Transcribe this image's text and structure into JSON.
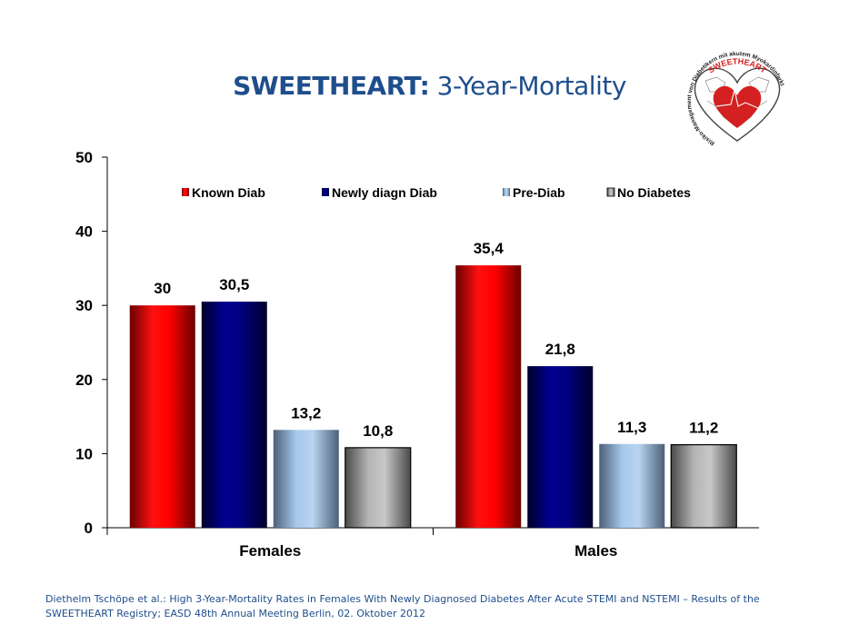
{
  "title": {
    "bold": "SWEETHEART:",
    "rest": " 3-Year-Mortality"
  },
  "logo": {
    "icon": "sweetheart-heart-logo-icon",
    "ring_top": "SWEETHEART",
    "ring_text": "Risiko-Management von Diabetikern mit akutem Myokardinfarkt"
  },
  "colors": {
    "title": "#1f4e8c",
    "footer": "#1f4e8c",
    "known_diab": "#ff0000",
    "newly_diagn_diab": "#000080",
    "pre_diab": "#a6c8ec",
    "no_diabetes": "#b4b4b4"
  },
  "chart_data": {
    "type": "bar",
    "title": "SWEETHEART: 3-Year-Mortality",
    "xlabel": "",
    "ylabel": "",
    "categories": [
      "Females",
      "Males"
    ],
    "series": [
      {
        "name": "Known Diab",
        "values": [
          30,
          35.4
        ],
        "labels": [
          "30",
          "35,4"
        ]
      },
      {
        "name": "Newly diagn Diab",
        "values": [
          30.5,
          21.8
        ],
        "labels": [
          "30,5",
          "21,8"
        ]
      },
      {
        "name": "Pre-Diab",
        "values": [
          13.2,
          11.3
        ],
        "labels": [
          "13,2",
          "11,3"
        ]
      },
      {
        "name": "No Diabetes",
        "values": [
          10.8,
          11.2
        ],
        "labels": [
          "10,8",
          "11,2"
        ]
      }
    ],
    "ylim": [
      0,
      50
    ],
    "yticks": [
      0,
      10,
      20,
      30,
      40,
      50
    ],
    "grid": false,
    "legend_position": "top-center"
  },
  "footer": {
    "line1": "Diethelm Tschöpe et al.: High 3-Year-Mortality Rates in Females With Newly Diagnosed Diabetes After Acute STEMI and NSTEMI – Results of the",
    "line2": "SWEETHEART Registry;  EASD 48th Annual Meeting Berlin, 02. Oktober 2012"
  }
}
